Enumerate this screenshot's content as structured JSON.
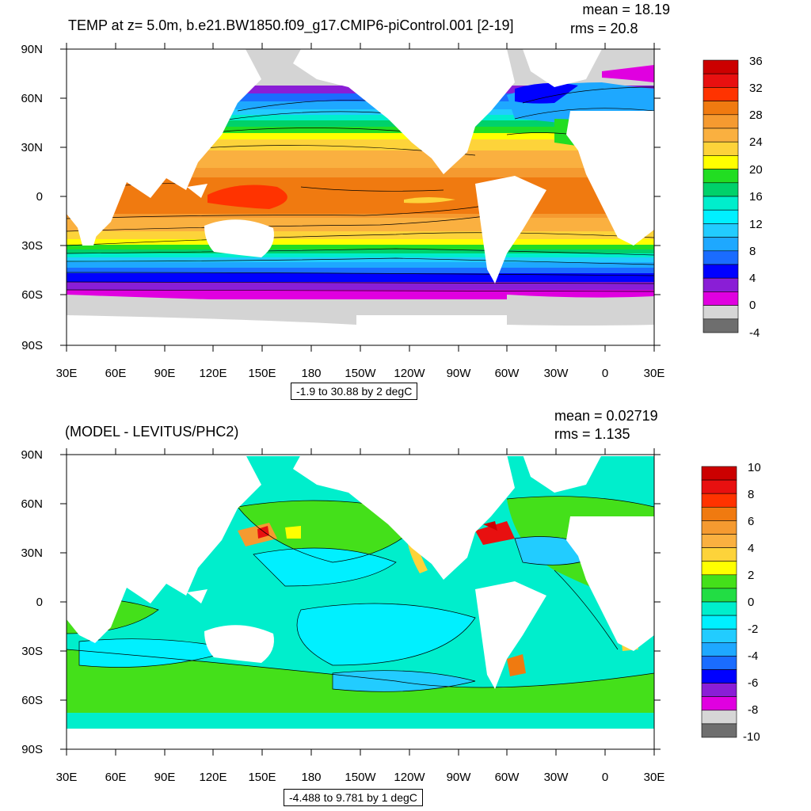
{
  "panels": [
    {
      "title": "TEMP at z=   5.0m, b.e21.BW1850.f09_g17.CMIP6-piControl.001 [2-19]",
      "mean": "mean = 18.19",
      "rms": "rms = 20.8",
      "range": "-1.9 to 30.88 by 2 degC",
      "lat_labels": [
        "90N",
        "60N",
        "30N",
        "0",
        "30S",
        "60S",
        "90S"
      ],
      "lon_labels": [
        "30E",
        "60E",
        "90E",
        "120E",
        "150E",
        "180",
        "150W",
        "120W",
        "90W",
        "60W",
        "30W",
        "0",
        "30E"
      ],
      "colorbar": {
        "labels": [
          "36",
          "32",
          "28",
          "24",
          "20",
          "16",
          "12",
          "8",
          "4",
          "0",
          "-4"
        ],
        "colors": [
          "#cc0000",
          "#e81010",
          "#ff3300",
          "#f07a10",
          "#f59a30",
          "#fab040",
          "#fdd33a",
          "#ffff00",
          "#22dd22",
          "#00d16a",
          "#00eecc",
          "#00f0ff",
          "#22ccff",
          "#1ea8ff",
          "#1a6cff",
          "#0000ff",
          "#8a1ed6",
          "#e000e0",
          "#d6d6d6",
          "#6e6e6e"
        ]
      }
    },
    {
      "title": "(MODEL - LEVITUS/PHC2)",
      "mean": "mean = 0.02719",
      "rms": "rms = 1.135",
      "range": "-4.488 to 9.781 by 1 degC",
      "lat_labels": [
        "90N",
        "60N",
        "30N",
        "0",
        "30S",
        "60S",
        "90S"
      ],
      "lon_labels": [
        "30E",
        "60E",
        "90E",
        "120E",
        "150E",
        "180",
        "150W",
        "120W",
        "90W",
        "60W",
        "30W",
        "0",
        "30E"
      ],
      "colorbar": {
        "labels": [
          "10",
          "8",
          "6",
          "4",
          "2",
          "0",
          "-2",
          "-4",
          "-6",
          "-8",
          "-10"
        ],
        "colors": [
          "#cc0000",
          "#e81010",
          "#ff3300",
          "#f07a10",
          "#f59a30",
          "#fab040",
          "#fdd33a",
          "#ffff00",
          "#44e01a",
          "#22dd44",
          "#00eecc",
          "#00f0ff",
          "#22ccff",
          "#1ea8ff",
          "#1a6cff",
          "#0000ff",
          "#8a1ed6",
          "#e000e0",
          "#d6d6d6",
          "#6e6e6e"
        ]
      }
    }
  ]
}
